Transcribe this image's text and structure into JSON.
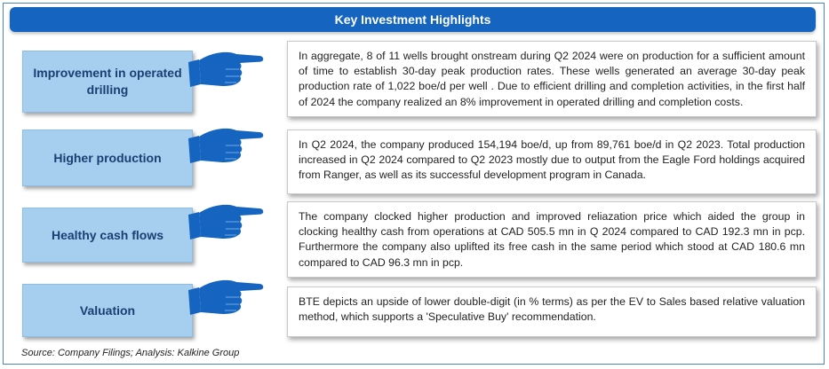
{
  "title": "Key Investment Highlights",
  "rows": [
    {
      "label": "Improvement in operated drilling",
      "icon": "pointing-hand-icon",
      "text": "In aggregate, 8 of 11 wells brought onstream during Q2 2024 were on production for a sufficient amount of time to establish 30-day peak production rates. These wells generated an average 30-day peak production rate of 1,022 boe/d per well . Due to efficient drilling and completion activities, in the first half of 2024 the company realized an 8% improvement in operated drilling and completion costs."
    },
    {
      "label": "Higher production",
      "icon": "pointing-hand-icon",
      "text": "In Q2 2024, the company produced 154,194 boe/d, up from 89,761 boe/d in Q2 2023. Total production increased in Q2 2024 compared to Q2 2023 mostly due to output from the Eagle Ford holdings acquired from Ranger, as well as its successful development program in Canada."
    },
    {
      "label": "Healthy cash flows",
      "icon": "pointing-hand-icon",
      "text": "The company clocked higher production and improved reliazation price which aided the group in clocking healthy cash from operations at CAD 505.5 mn in Q 2024 compared to CAD 192.3 mn in pcp. Furthermore the company also uplifted its free cash in the same period which stood at CAD 180.6 mn compared to CAD 96.3 mn in pcp."
    },
    {
      "label": "Valuation",
      "icon": "pointing-hand-icon",
      "text": "BTE depicts an upside of lower double-digit (in % terms) as per the EV to Sales based relative valuation method, which supports a 'Speculative Buy' recommendation."
    }
  ],
  "source": "Source: Company Filings; Analysis: Kalkine Group",
  "colors": {
    "title_bar": "#1565c0",
    "label_fill": "#a6cfef",
    "label_text": "#1a3f73",
    "hand": "#1565c0"
  }
}
